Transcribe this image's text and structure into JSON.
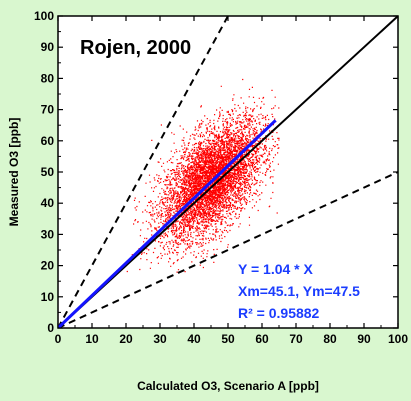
{
  "chart_data": {
    "type": "scatter",
    "title": "Rojen, 2000",
    "xlabel": "Calculated O3, Scenario A [ppb]",
    "ylabel": "Measured O3 [ppb]",
    "xlim": [
      0,
      100
    ],
    "ylim": [
      0,
      100
    ],
    "x_ticks": [
      "0",
      "10",
      "20",
      "30",
      "40",
      "50",
      "60",
      "70",
      "80",
      "90",
      "100"
    ],
    "y_ticks": [
      "0",
      "10",
      "20",
      "30",
      "40",
      "50",
      "60",
      "70",
      "80",
      "90",
      "100"
    ],
    "grid": false,
    "colors": {
      "points": "#ff0000",
      "fit_line": "#1414ff",
      "one_to_one": "#000000",
      "annotation": "#1a3cff",
      "background": "#d9f7cf"
    },
    "cloud": {
      "count": 6000,
      "x_mean": 45.1,
      "y_mean": 47.5,
      "x_std": 7.5,
      "y_std": 9.5,
      "x_range": [
        20,
        65
      ],
      "y_range": [
        18,
        88
      ]
    },
    "lines": [
      {
        "name": "1:1",
        "slope": 1.0,
        "style": "solid",
        "x_range": [
          0,
          100
        ]
      },
      {
        "name": "2:1",
        "slope": 2.0,
        "style": "dashed",
        "x_range": [
          0,
          52
        ]
      },
      {
        "name": "1:2",
        "slope": 0.5,
        "style": "dashed",
        "x_range": [
          0,
          100
        ]
      },
      {
        "name": "fit",
        "slope": 1.04,
        "style": "solid",
        "x_range": [
          0,
          64
        ]
      }
    ],
    "annotations": {
      "fit_eq": "Y = 1.04 * X",
      "means": "Xm=45.1, Ym=47.5",
      "r2": "R² = 0.95882"
    }
  }
}
